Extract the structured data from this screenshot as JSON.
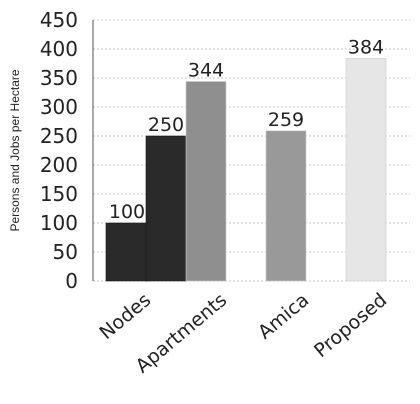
{
  "chart_data": {
    "type": "bar",
    "title": "",
    "xlabel": "",
    "ylabel": "Persons and Jobs per Hectare",
    "ylim": [
      0,
      450
    ],
    "yticks": [
      0,
      50,
      100,
      150,
      200,
      250,
      300,
      350,
      400,
      450
    ],
    "grid": true,
    "series": [
      {
        "values": [
          100,
          250,
          344,
          259,
          384
        ],
        "categories": [
          "",
          "Nodes",
          "Apartments",
          "Amica",
          "Proposed"
        ]
      }
    ],
    "bars": [
      {
        "category": "Nodes",
        "value": 100,
        "color": "#2a2a2a"
      },
      {
        "category": "Nodes",
        "value": 250,
        "color": "#2a2a2a"
      },
      {
        "category": "Apartments",
        "value": 344,
        "color": "#8f8f8f"
      },
      {
        "category": "Amica",
        "value": 259,
        "color": "#999999"
      },
      {
        "category": "Proposed",
        "value": 384,
        "color": "#e6e6e6"
      }
    ],
    "value_labels": [
      "100",
      "250",
      "344",
      "259",
      "384"
    ],
    "category_labels": [
      "Nodes",
      "Apartments",
      "Amica",
      "Proposed"
    ]
  }
}
